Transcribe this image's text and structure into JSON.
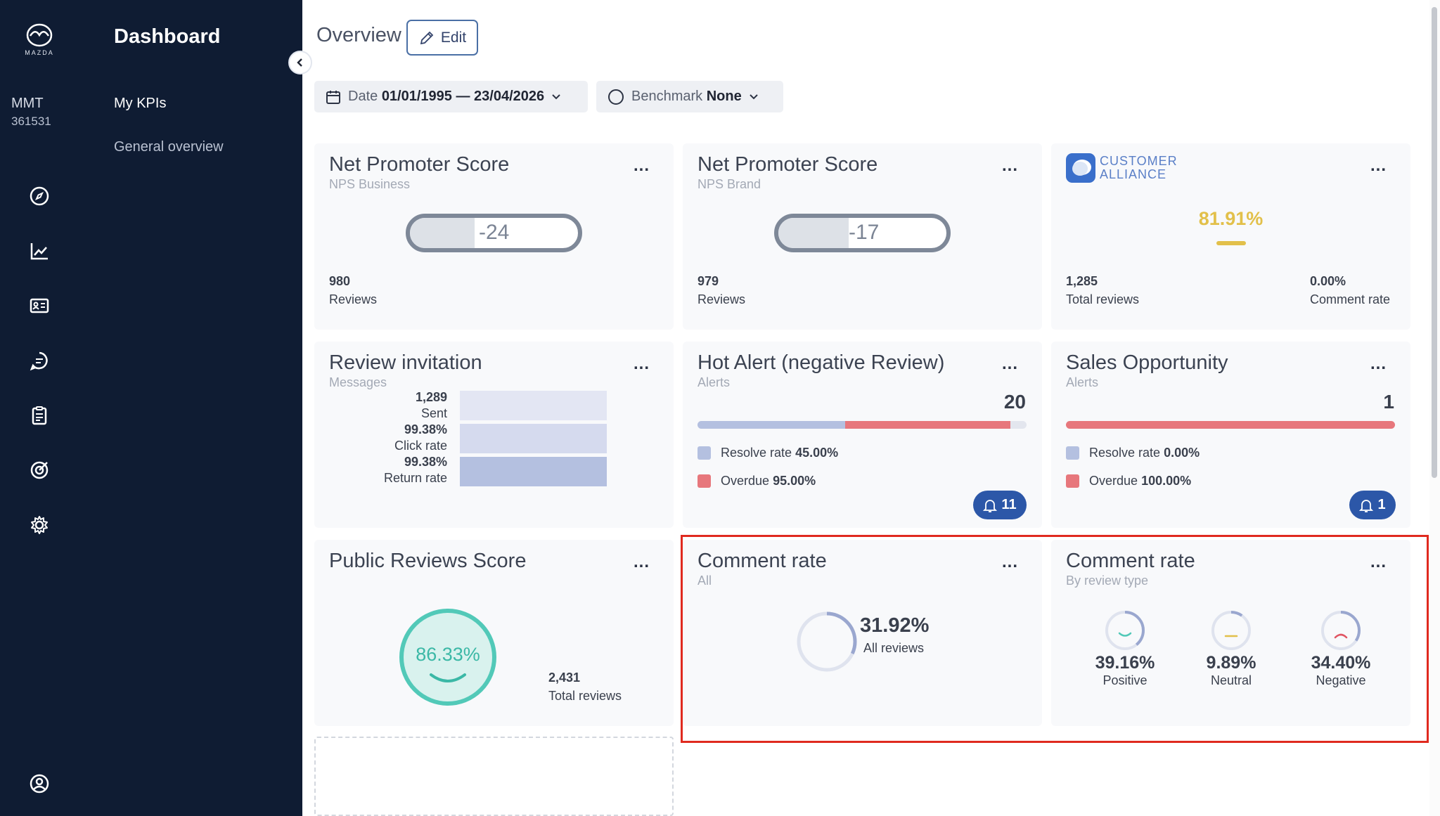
{
  "sidebar": {
    "brand": "MAZDA",
    "account_name": "MMT",
    "account_id": "361531",
    "title": "Dashboard",
    "links": [
      "My KPIs",
      "General overview"
    ]
  },
  "header": {
    "title": "Overview",
    "edit_label": "Edit",
    "date_label": "Date",
    "date_value": "01/01/1995 — 23/04/2026",
    "benchmark_label": "Benchmark",
    "benchmark_value": "None"
  },
  "more_label": "...",
  "nps_business": {
    "title": "Net Promoter Score",
    "subtitle": "NPS Business",
    "score": "-24",
    "score_value": -24,
    "count": "980",
    "count_label": "Reviews"
  },
  "nps_brand": {
    "title": "Net Promoter Score",
    "subtitle": "NPS Brand",
    "score": "-17",
    "score_value": -17,
    "count": "979",
    "count_label": "Reviews"
  },
  "customer_alliance": {
    "logo_line1": "CUSTOMER",
    "logo_line2": "ALLIANCE",
    "score": "81.91%",
    "total": "1,285",
    "total_label": "Total reviews",
    "comment_rate": "0.00%",
    "comment_rate_label": "Comment rate"
  },
  "review_invitation": {
    "title": "Review invitation",
    "subtitle": "Messages",
    "rows": [
      {
        "value": "1,289",
        "label": "Sent"
      },
      {
        "value": "99.38%",
        "label": "Click rate"
      },
      {
        "value": "99.38%",
        "label": "Return rate"
      }
    ]
  },
  "hot_alert": {
    "title": "Hot Alert (negative Review)",
    "subtitle": "Alerts",
    "count": "20",
    "resolve_label": "Resolve rate",
    "resolve_value": "45.00%",
    "resolve_fraction": 0.45,
    "overdue_label": "Overdue",
    "overdue_value": "95.00%",
    "overdue_fraction": 0.95,
    "badge": "11"
  },
  "sales_opportunity": {
    "title": "Sales Opportunity",
    "subtitle": "Alerts",
    "count": "1",
    "resolve_label": "Resolve rate",
    "resolve_value": "0.00%",
    "resolve_fraction": 0.0,
    "overdue_label": "Overdue",
    "overdue_value": "100.00%",
    "overdue_fraction": 1.0,
    "badge": "1"
  },
  "public_reviews": {
    "title": "Public Reviews Score",
    "score": "86.33%",
    "total": "2,431",
    "total_label": "Total reviews"
  },
  "comment_rate_all": {
    "title": "Comment rate",
    "subtitle": "All",
    "value": "31.92%",
    "fraction": 0.3192,
    "label": "All reviews"
  },
  "comment_rate_type": {
    "title": "Comment rate",
    "subtitle": "By review type",
    "items": [
      {
        "value": "39.16%",
        "fraction": 0.3916,
        "label": "Positive"
      },
      {
        "value": "9.89%",
        "fraction": 0.0989,
        "label": "Neutral"
      },
      {
        "value": "34.40%",
        "fraction": 0.344,
        "label": "Negative"
      }
    ]
  },
  "colors": {
    "sidebar": "#0f1c33",
    "accent_blue": "#2c57a8",
    "resolve": "#b4c0e0",
    "overdue": "#e7777c",
    "gold": "#e2c04a",
    "teal": "#52c9b8"
  }
}
